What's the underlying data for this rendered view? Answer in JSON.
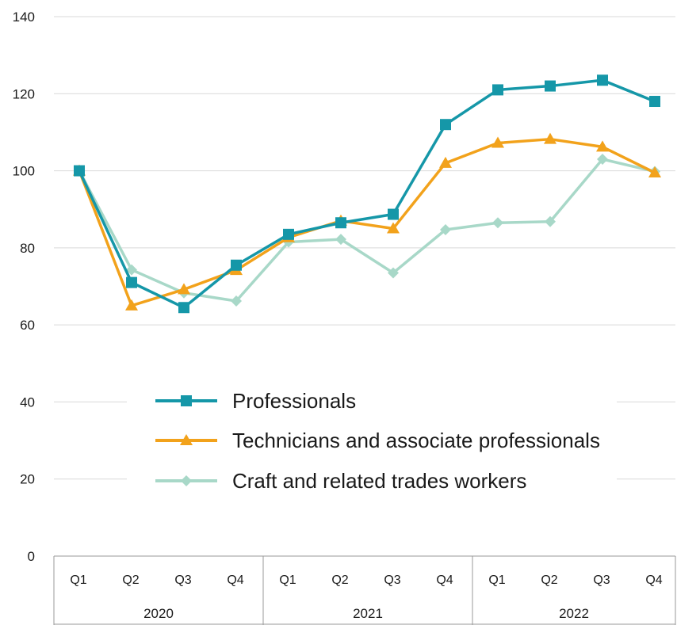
{
  "chart_data": {
    "type": "line",
    "title": "",
    "xlabel": "",
    "ylabel": "",
    "ylim": [
      0,
      140
    ],
    "yticks": [
      0,
      20,
      40,
      60,
      80,
      100,
      120,
      140
    ],
    "grid": "horizontal",
    "legend_position": "center",
    "categories": [
      "Q1",
      "Q2",
      "Q3",
      "Q4",
      "Q1",
      "Q2",
      "Q3",
      "Q4",
      "Q1",
      "Q2",
      "Q3",
      "Q4"
    ],
    "groups": [
      {
        "label": "2020",
        "count": 4
      },
      {
        "label": "2021",
        "count": 4
      },
      {
        "label": "2022",
        "count": 4
      }
    ],
    "series": [
      {
        "name": "Professionals",
        "color": "#1597a8",
        "marker": "square",
        "values": [
          100,
          71,
          64.5,
          75.5,
          83.5,
          86.5,
          88.7,
          112,
          121,
          122,
          123.5,
          118
        ]
      },
      {
        "name": "Technicians and associate professionals",
        "color": "#f2a21b",
        "marker": "triangle",
        "values": [
          100,
          65,
          69.2,
          74.2,
          82.7,
          87,
          85,
          102,
          107.2,
          108.2,
          106.2,
          99.5
        ]
      },
      {
        "name": "Craft and related trades workers",
        "color": "#a8d8c8",
        "marker": "diamond",
        "values": [
          100,
          74.3,
          68.3,
          66.2,
          81.5,
          82.2,
          73.5,
          84.7,
          86.5,
          86.8,
          103,
          99.8
        ]
      }
    ]
  }
}
